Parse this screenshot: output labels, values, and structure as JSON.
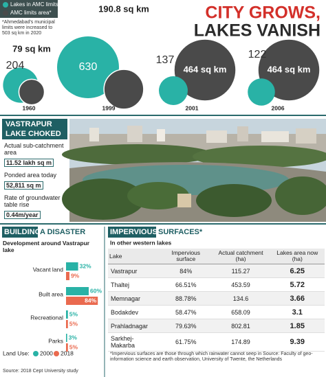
{
  "header": {
    "title_line1": "CITY GROWS,",
    "title_line2": "LAKES VANISH"
  },
  "growth": {
    "type": "bubble",
    "categories": [
      "1960",
      "1999",
      "2001",
      "2006"
    ],
    "series": [
      {
        "name": "Lakes in AMC limits",
        "color": "#29b2a6",
        "values": [
          204,
          630,
          137,
          122
        ]
      },
      {
        "name": "AMC limits area*",
        "color": "#4a4a4a",
        "values": [
          79,
          190.8,
          464,
          464
        ],
        "value_labels": [
          "79 sq km",
          "190.8 sq km",
          "464 sq km",
          "464 sq km"
        ]
      }
    ],
    "note": "*Ahmedabad's municipal limits were increased to 503 sq km in 2020"
  },
  "vastrapur": {
    "title_line1": "VASTRAPUR",
    "title_line2": "LAKE CHOKED",
    "items": [
      {
        "label": "Actual sub-catchment area",
        "value": "11.52 lakh sq m"
      },
      {
        "label": "Ponded area today",
        "value": "52,811 sq m"
      },
      {
        "label": "Rate of groundwater table rise",
        "value": "0.44m/year"
      }
    ]
  },
  "development": {
    "type": "bar",
    "title_word1": "BUILDING",
    "title_rest": "A DISASTER",
    "subtitle": "Development around Vastrapur lake",
    "categories": [
      "Vacant land",
      "Built area",
      "Recreational",
      "Parks"
    ],
    "series": [
      {
        "name": "2000",
        "color": "#29b2a6",
        "values": [
          32,
          60,
          5,
          3
        ],
        "value_labels": [
          "32%",
          "60%",
          "5%",
          "3%"
        ]
      },
      {
        "name": "2018",
        "color": "#ea6a4f",
        "values": [
          9,
          84,
          5,
          5
        ],
        "value_labels": [
          "9%",
          "84%",
          "5%",
          "5%"
        ]
      }
    ],
    "legend_label": "Land Use:",
    "source": "Source: 2018 Cept University study"
  },
  "impervious": {
    "title_word1": "IMPERVIOUS",
    "title_rest": "SURFACES*",
    "subtitle": "In other western lakes",
    "table": {
      "header": [
        "Lake",
        "Impervious surface",
        "Actual catchment (ha)",
        "Lakes area now (ha)"
      ],
      "rows": [
        [
          "Vastrapur",
          "84%",
          "115.27",
          "6.25"
        ],
        [
          "Thaltej",
          "66.51%",
          "453.59",
          "5.72"
        ],
        [
          "Memnagar",
          "88.78%",
          "134.6",
          "3.66"
        ],
        [
          "Bodakdev",
          "58.47%",
          "658.09",
          "3.1"
        ],
        [
          "Prahladnagar",
          "79.63%",
          "802.81",
          "1.85"
        ],
        [
          "Sarkhej-Makarba",
          "61.75%",
          "174.89",
          "9.39"
        ]
      ]
    },
    "footnote": "*Impervious surfaces are those through which rainwater cannot seep in Source: Faculty of geo-information science and earth observation, University of Twente, the Netherlands"
  }
}
